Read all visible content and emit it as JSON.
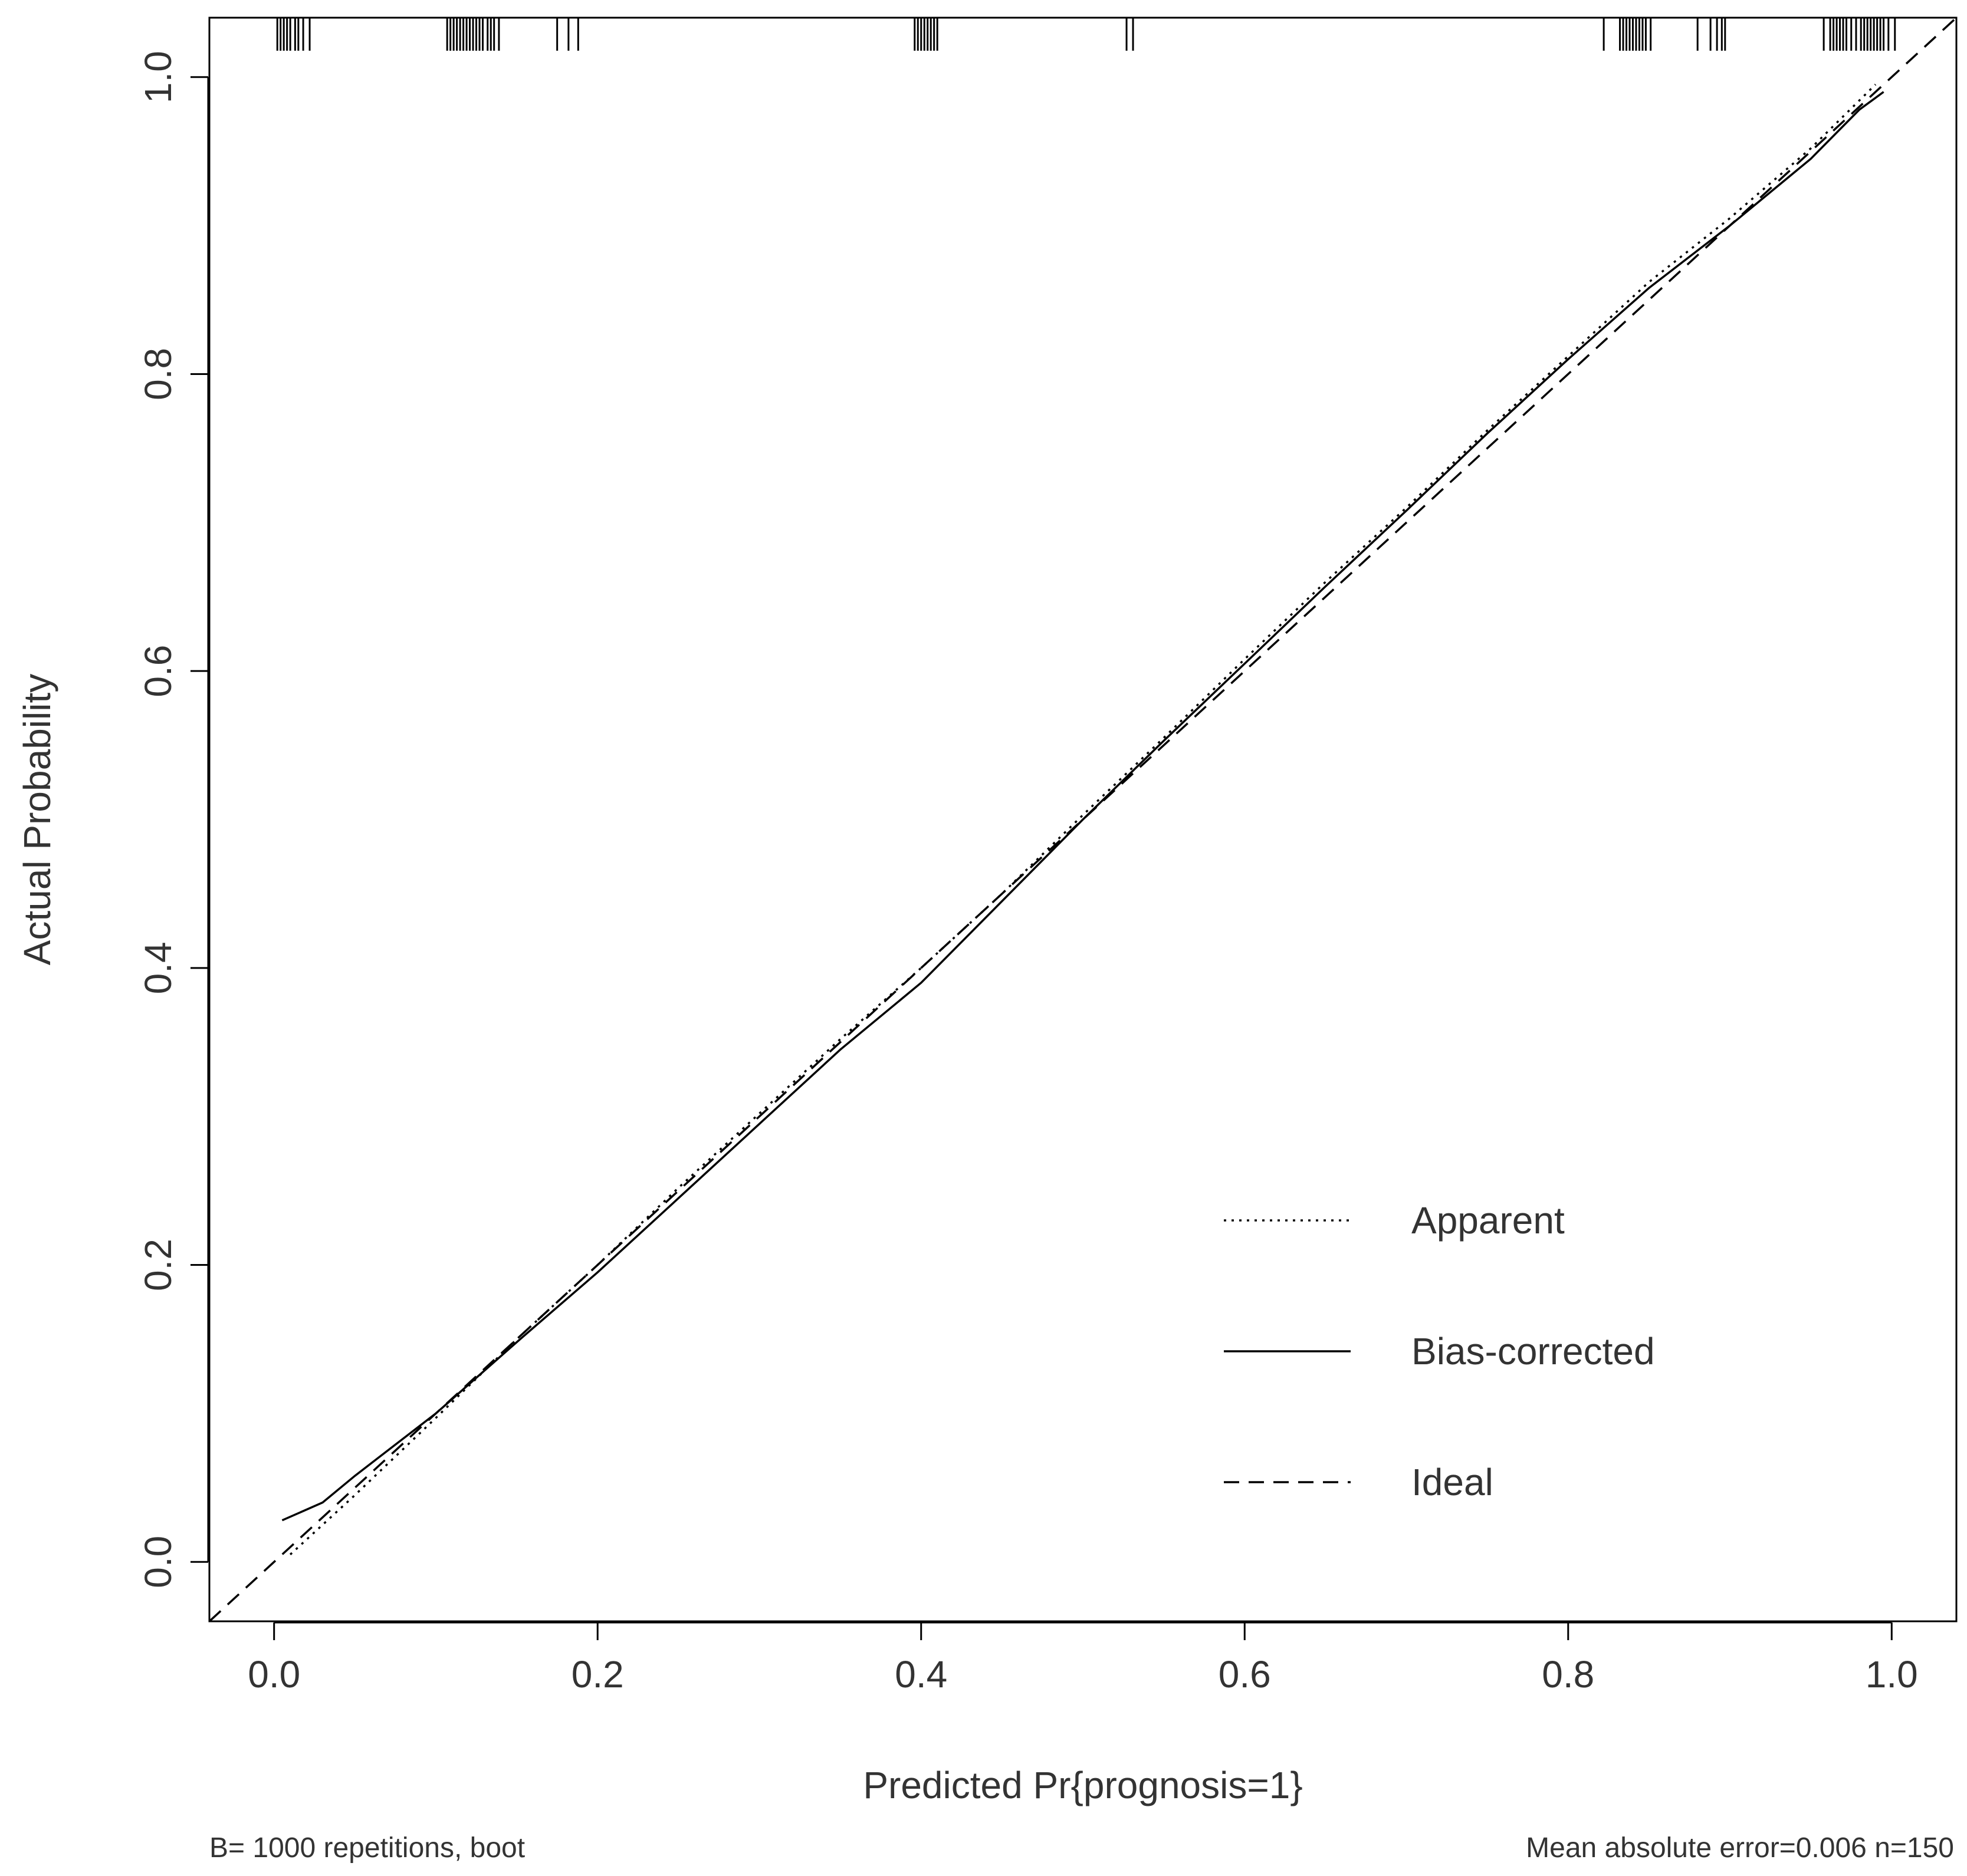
{
  "chart_data": {
    "type": "line",
    "title": "",
    "xlabel": "Predicted Pr{prognosis=1}",
    "ylabel": "Actual Probability",
    "xlim": [
      -0.04,
      1.04
    ],
    "ylim": [
      -0.04,
      1.04
    ],
    "xticks": [
      0.0,
      0.2,
      0.4,
      0.6,
      0.8,
      1.0
    ],
    "yticks": [
      0.0,
      0.2,
      0.4,
      0.6,
      0.8,
      1.0
    ],
    "xtick_labels": [
      "0.0",
      "0.2",
      "0.4",
      "0.6",
      "0.8",
      "1.0"
    ],
    "ytick_labels": [
      "0.0",
      "0.2",
      "0.4",
      "0.6",
      "0.8",
      "1.0"
    ],
    "grid": false,
    "legend_position": "bottom-right",
    "series": [
      {
        "name": "Apparent",
        "line_style": "dotted",
        "color": "#000000",
        "x": [
          0.01,
          0.05,
          0.1,
          0.15,
          0.2,
          0.25,
          0.3,
          0.35,
          0.4,
          0.45,
          0.5,
          0.55,
          0.6,
          0.65,
          0.7,
          0.75,
          0.8,
          0.85,
          0.9,
          0.95,
          0.99
        ],
        "y": [
          0.005,
          0.045,
          0.097,
          0.15,
          0.2,
          0.252,
          0.302,
          0.352,
          0.4,
          0.45,
          0.503,
          0.555,
          0.608,
          0.66,
          0.71,
          0.762,
          0.812,
          0.862,
          0.905,
          0.952,
          0.995
        ]
      },
      {
        "name": "Bias-corrected",
        "line_style": "solid",
        "color": "#000000",
        "x": [
          0.005,
          0.03,
          0.05,
          0.1,
          0.15,
          0.2,
          0.25,
          0.3,
          0.35,
          0.4,
          0.45,
          0.5,
          0.55,
          0.6,
          0.65,
          0.7,
          0.75,
          0.8,
          0.85,
          0.9,
          0.95,
          0.98,
          0.995
        ],
        "y": [
          0.028,
          0.04,
          0.058,
          0.1,
          0.148,
          0.195,
          0.245,
          0.295,
          0.345,
          0.39,
          0.445,
          0.5,
          0.553,
          0.605,
          0.657,
          0.708,
          0.76,
          0.81,
          0.858,
          0.9,
          0.945,
          0.978,
          0.99
        ]
      },
      {
        "name": "Ideal",
        "line_style": "dashed",
        "color": "#000000",
        "x": [
          -0.04,
          1.04
        ],
        "y": [
          -0.04,
          1.04
        ]
      }
    ],
    "rug_x": [
      0.002,
      0.004,
      0.006,
      0.008,
      0.01,
      0.013,
      0.015,
      0.018,
      0.022,
      0.107,
      0.109,
      0.111,
      0.113,
      0.115,
      0.117,
      0.119,
      0.121,
      0.123,
      0.125,
      0.127,
      0.129,
      0.132,
      0.134,
      0.136,
      0.139,
      0.175,
      0.182,
      0.188,
      0.396,
      0.398,
      0.4,
      0.402,
      0.404,
      0.406,
      0.408,
      0.41,
      0.527,
      0.531,
      0.822,
      0.832,
      0.834,
      0.836,
      0.838,
      0.84,
      0.842,
      0.844,
      0.846,
      0.848,
      0.851,
      0.88,
      0.888,
      0.892,
      0.895,
      0.897,
      0.958,
      0.962,
      0.964,
      0.966,
      0.968,
      0.97,
      0.972,
      0.975,
      0.978,
      0.981,
      0.983,
      0.985,
      0.987,
      0.989,
      0.991,
      0.993,
      0.995,
      0.998,
      1.002
    ],
    "annotations": {
      "bottom_left": "B= 1000 repetitions, boot",
      "bottom_right": "Mean absolute error=0.006 n=150"
    }
  }
}
